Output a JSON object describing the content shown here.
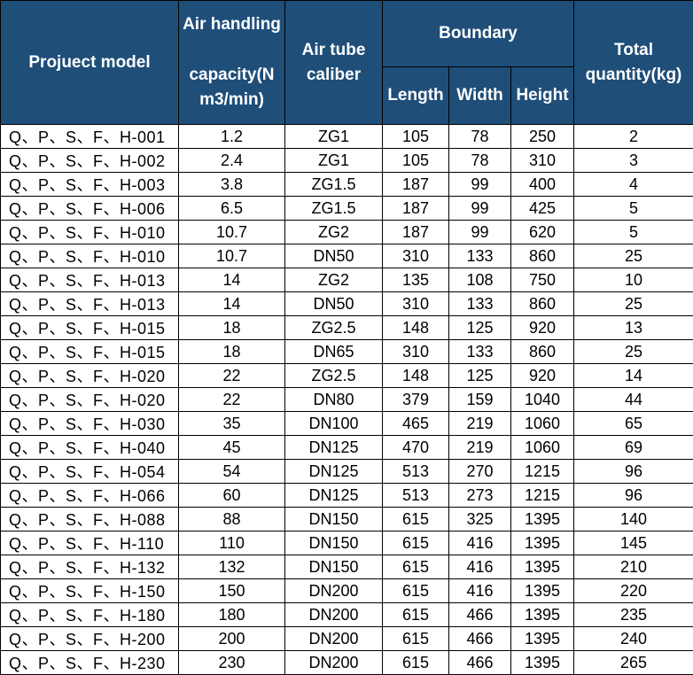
{
  "header": {
    "model": "Projuect model",
    "capacity_top": "Air handling",
    "capacity_bottom": "capacity(N m3/min)",
    "caliber": "Air tube caliber",
    "boundary": "Boundary",
    "length": "Length",
    "width": "Width",
    "height": "Height",
    "total": "Total quantity(kg)"
  },
  "rows": [
    {
      "model": "Q、P、S、F、H-001",
      "capacity": "1.2",
      "caliber": "ZG1",
      "length": "105",
      "width": "78",
      "height": "250",
      "total": "2"
    },
    {
      "model": "Q、P、S、F、H-002",
      "capacity": "2.4",
      "caliber": "ZG1",
      "length": "105",
      "width": "78",
      "height": "310",
      "total": "3"
    },
    {
      "model": "Q、P、S、F、H-003",
      "capacity": "3.8",
      "caliber": "ZG1.5",
      "length": "187",
      "width": "99",
      "height": "400",
      "total": "4"
    },
    {
      "model": "Q、P、S、F、H-006",
      "capacity": "6.5",
      "caliber": "ZG1.5",
      "length": "187",
      "width": "99",
      "height": "425",
      "total": "5"
    },
    {
      "model": "Q、P、S、F、H-010",
      "capacity": "10.7",
      "caliber": "ZG2",
      "length": "187",
      "width": "99",
      "height": "620",
      "total": "5"
    },
    {
      "model": "Q、P、S、F、H-010",
      "capacity": "10.7",
      "caliber": "DN50",
      "length": "310",
      "width": "133",
      "height": "860",
      "total": "25"
    },
    {
      "model": "Q、P、S、F、H-013",
      "capacity": "14",
      "caliber": "ZG2",
      "length": "135",
      "width": "108",
      "height": "750",
      "total": "10"
    },
    {
      "model": "Q、P、S、F、H-013",
      "capacity": "14",
      "caliber": "DN50",
      "length": "310",
      "width": "133",
      "height": "860",
      "total": "25"
    },
    {
      "model": "Q、P、S、F、H-015",
      "capacity": "18",
      "caliber": "ZG2.5",
      "length": "148",
      "width": "125",
      "height": "920",
      "total": "13"
    },
    {
      "model": "Q、P、S、F、H-015",
      "capacity": "18",
      "caliber": "DN65",
      "length": "310",
      "width": "133",
      "height": "860",
      "total": "25"
    },
    {
      "model": "Q、P、S、F、H-020",
      "capacity": "22",
      "caliber": "ZG2.5",
      "length": "148",
      "width": "125",
      "height": "920",
      "total": "14"
    },
    {
      "model": "Q、P、S、F、H-020",
      "capacity": "22",
      "caliber": "DN80",
      "length": "379",
      "width": "159",
      "height": "1040",
      "total": "44"
    },
    {
      "model": "Q、P、S、F、H-030",
      "capacity": "35",
      "caliber": "DN100",
      "length": "465",
      "width": "219",
      "height": "1060",
      "total": "65"
    },
    {
      "model": "Q、P、S、F、H-040",
      "capacity": "45",
      "caliber": "DN125",
      "length": "470",
      "width": "219",
      "height": "1060",
      "total": "69"
    },
    {
      "model": "Q、P、S、F、H-054",
      "capacity": "54",
      "caliber": "DN125",
      "length": "513",
      "width": "270",
      "height": "1215",
      "total": "96"
    },
    {
      "model": "Q、P、S、F、H-066",
      "capacity": "60",
      "caliber": "DN125",
      "length": "513",
      "width": "273",
      "height": "1215",
      "total": "96"
    },
    {
      "model": "Q、P、S、F、H-088",
      "capacity": "88",
      "caliber": "DN150",
      "length": "615",
      "width": "325",
      "height": "1395",
      "total": "140"
    },
    {
      "model": "Q、P、S、F、H-110",
      "capacity": "110",
      "caliber": "DN150",
      "length": "615",
      "width": "416",
      "height": "1395",
      "total": "145"
    },
    {
      "model": "Q、P、S、F、H-132",
      "capacity": "132",
      "caliber": "DN150",
      "length": "615",
      "width": "416",
      "height": "1395",
      "total": "210"
    },
    {
      "model": "Q、P、S、F、H-150",
      "capacity": "150",
      "caliber": "DN200",
      "length": "615",
      "width": "416",
      "height": "1395",
      "total": "220"
    },
    {
      "model": "Q、P、S、F、H-180",
      "capacity": "180",
      "caliber": "DN200",
      "length": "615",
      "width": "466",
      "height": "1395",
      "total": "235"
    },
    {
      "model": "Q、P、S、F、H-200",
      "capacity": "200",
      "caliber": "DN200",
      "length": "615",
      "width": "466",
      "height": "1395",
      "total": "240"
    },
    {
      "model": "Q、P、S、F、H-230",
      "capacity": "230",
      "caliber": "DN200",
      "length": "615",
      "width": "466",
      "height": "1395",
      "total": "265"
    }
  ]
}
